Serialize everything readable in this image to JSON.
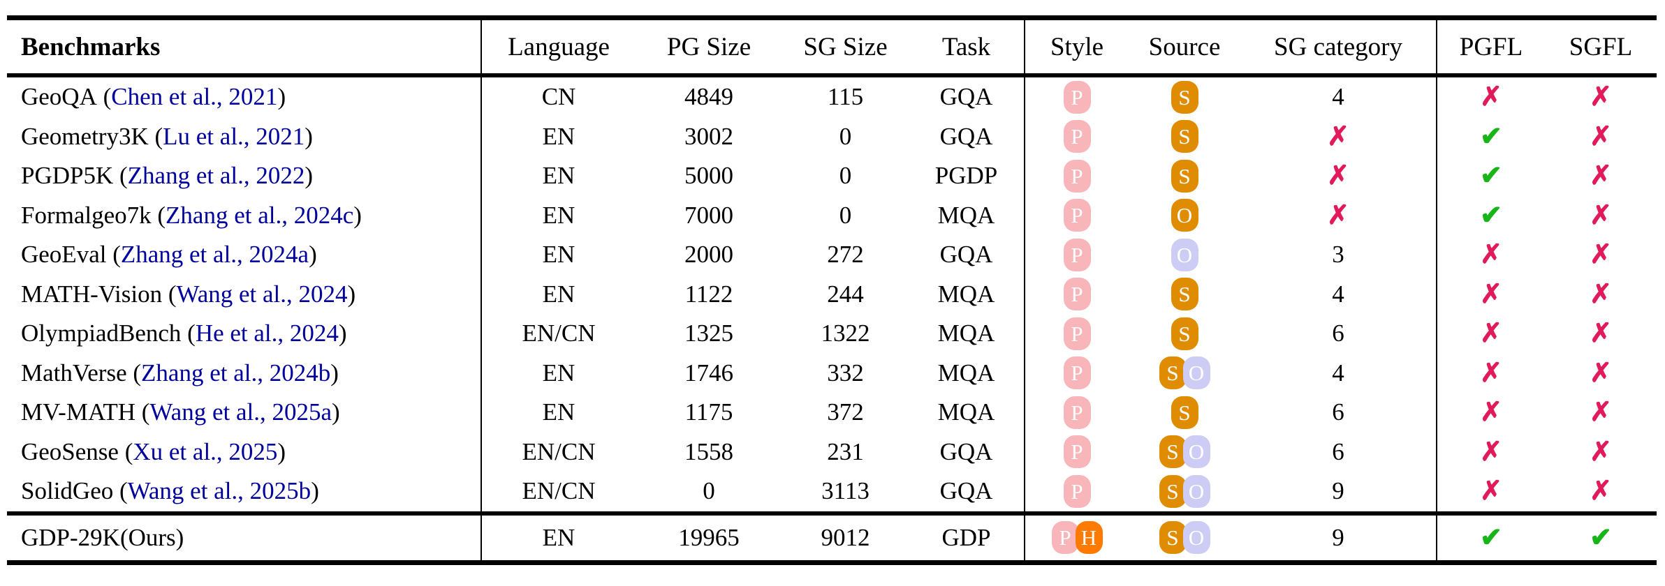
{
  "table": {
    "columns": [
      {
        "key": "benchmarks",
        "label": "Benchmarks"
      },
      {
        "key": "language",
        "label": "Language"
      },
      {
        "key": "pg_size",
        "label": "PG Size"
      },
      {
        "key": "sg_size",
        "label": "SG Size"
      },
      {
        "key": "task",
        "label": "Task"
      },
      {
        "key": "style",
        "label": "Style"
      },
      {
        "key": "source",
        "label": "Source"
      },
      {
        "key": "sg_category",
        "label": "SG category"
      },
      {
        "key": "pgfl",
        "label": "PGFL"
      },
      {
        "key": "sgfl",
        "label": "SGFL"
      }
    ],
    "rows": [
      {
        "name": "GeoQA",
        "citation": "Chen et al., 2021",
        "language": "CN",
        "pg_size": "4849",
        "sg_size": "115",
        "task": "GQA",
        "style": [
          {
            "letter": "P",
            "color": "pink"
          }
        ],
        "source": [
          {
            "letter": "S",
            "color": "orange"
          }
        ],
        "sg_category": "4",
        "pgfl": "cross",
        "sgfl": "cross"
      },
      {
        "name": "Geometry3K",
        "citation": "Lu et al., 2021",
        "language": "EN",
        "pg_size": "3002",
        "sg_size": "0",
        "task": "GQA",
        "style": [
          {
            "letter": "P",
            "color": "pink"
          }
        ],
        "source": [
          {
            "letter": "S",
            "color": "orange"
          }
        ],
        "sg_category": "cross",
        "pgfl": "check",
        "sgfl": "cross"
      },
      {
        "name": "PGDP5K",
        "citation": "Zhang et al., 2022",
        "language": "EN",
        "pg_size": "5000",
        "sg_size": "0",
        "task": "PGDP",
        "style": [
          {
            "letter": "P",
            "color": "pink"
          }
        ],
        "source": [
          {
            "letter": "S",
            "color": "orange"
          }
        ],
        "sg_category": "cross",
        "pgfl": "check",
        "sgfl": "cross"
      },
      {
        "name": "Formalgeo7k",
        "citation": "Zhang et al., 2024c",
        "language": "EN",
        "pg_size": "7000",
        "sg_size": "0",
        "task": "MQA",
        "style": [
          {
            "letter": "P",
            "color": "pink"
          }
        ],
        "source": [
          {
            "letter": "O",
            "color": "orange"
          }
        ],
        "sg_category": "cross",
        "pgfl": "check",
        "sgfl": "cross"
      },
      {
        "name": "GeoEval",
        "citation": "Zhang et al., 2024a",
        "language": "EN",
        "pg_size": "2000",
        "sg_size": "272",
        "task": "GQA",
        "style": [
          {
            "letter": "P",
            "color": "pink"
          }
        ],
        "source": [
          {
            "letter": "O",
            "color": "lavender"
          }
        ],
        "sg_category": "3",
        "pgfl": "cross",
        "sgfl": "cross"
      },
      {
        "name": "MATH-Vision",
        "citation": "Wang et al., 2024",
        "language": "EN",
        "pg_size": "1122",
        "sg_size": "244",
        "task": "MQA",
        "style": [
          {
            "letter": "P",
            "color": "pink"
          }
        ],
        "source": [
          {
            "letter": "S",
            "color": "orange"
          }
        ],
        "sg_category": "4",
        "pgfl": "cross",
        "sgfl": "cross"
      },
      {
        "name": "OlympiadBench",
        "citation": "He et al., 2024",
        "language": "EN/CN",
        "pg_size": "1325",
        "sg_size": "1322",
        "task": "MQA",
        "style": [
          {
            "letter": "P",
            "color": "pink"
          }
        ],
        "source": [
          {
            "letter": "S",
            "color": "orange"
          }
        ],
        "sg_category": "6",
        "pgfl": "cross",
        "sgfl": "cross"
      },
      {
        "name": "MathVerse",
        "citation": "Zhang et al., 2024b",
        "language": "EN",
        "pg_size": "1746",
        "sg_size": "332",
        "task": "MQA",
        "style": [
          {
            "letter": "P",
            "color": "pink"
          }
        ],
        "source": [
          {
            "letter": "S",
            "color": "orange"
          },
          {
            "letter": "O",
            "color": "lavender"
          }
        ],
        "sg_category": "4",
        "pgfl": "cross",
        "sgfl": "cross"
      },
      {
        "name": "MV-MATH",
        "citation": "Wang et al., 2025a",
        "language": "EN",
        "pg_size": "1175",
        "sg_size": "372",
        "task": "MQA",
        "style": [
          {
            "letter": "P",
            "color": "pink"
          }
        ],
        "source": [
          {
            "letter": "S",
            "color": "orange"
          }
        ],
        "sg_category": "6",
        "pgfl": "cross",
        "sgfl": "cross"
      },
      {
        "name": "GeoSense",
        "citation": "Xu et al., 2025",
        "language": "EN/CN",
        "pg_size": "1558",
        "sg_size": "231",
        "task": "GQA",
        "style": [
          {
            "letter": "P",
            "color": "pink"
          }
        ],
        "source": [
          {
            "letter": "S",
            "color": "orange"
          },
          {
            "letter": "O",
            "color": "lavender"
          }
        ],
        "sg_category": "6",
        "pgfl": "cross",
        "sgfl": "cross"
      },
      {
        "name": "SolidGeo",
        "citation": "Wang et al., 2025b",
        "language": "EN/CN",
        "pg_size": "0",
        "sg_size": "3113",
        "task": "GQA",
        "style": [
          {
            "letter": "P",
            "color": "pink"
          }
        ],
        "source": [
          {
            "letter": "S",
            "color": "orange"
          },
          {
            "letter": "O",
            "color": "lavender"
          }
        ],
        "sg_category": "9",
        "pgfl": "cross",
        "sgfl": "cross"
      }
    ],
    "ours_row": {
      "name": "GDP-29K(Ours)",
      "citation": null,
      "language": "EN",
      "pg_size": "19965",
      "sg_size": "9012",
      "task": "GDP",
      "style": [
        {
          "letter": "P",
          "color": "pink"
        },
        {
          "letter": "H",
          "color": "bright_orange"
        }
      ],
      "source": [
        {
          "letter": "S",
          "color": "orange"
        },
        {
          "letter": "O",
          "color": "lavender"
        }
      ],
      "sg_category": "9",
      "pgfl": "check",
      "sgfl": "check"
    }
  },
  "badge_colors": {
    "pink": "#F8B6BA",
    "orange": "#DF8C00",
    "lavender": "#CDCCF4",
    "bright_orange": "#FF7A00"
  },
  "badge_text_color": "#FFFFFF",
  "marks": {
    "check": {
      "glyph": "✔",
      "color": "#17B517"
    },
    "cross": {
      "glyph": "✗",
      "color": "#E11A5C"
    }
  },
  "text_colors": {
    "citation": "#00009C",
    "body": "#000000"
  }
}
